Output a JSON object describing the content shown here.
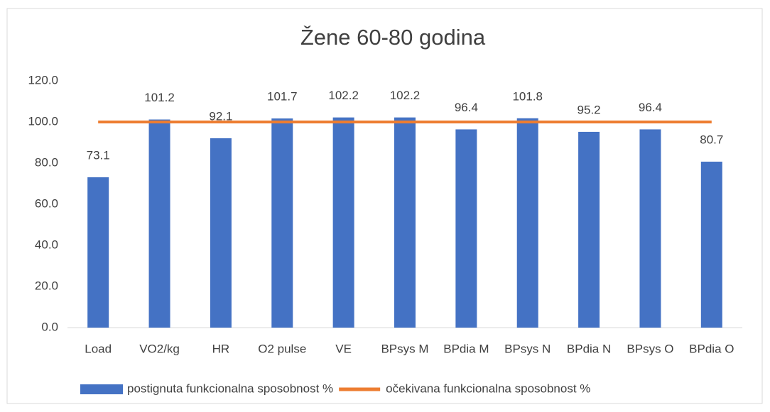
{
  "chart_data": {
    "type": "bar",
    "title": "Žene 60-80 godina",
    "categories": [
      "Load",
      "VO2/kg",
      "HR",
      "O2 pulse",
      "VE",
      "BPsys M",
      "BPdia M",
      "BPsys N",
      "BPdia N",
      "BPsys O",
      "BPdia O"
    ],
    "series": [
      {
        "name": "postignuta funkcionalna sposobnost %",
        "color": "#4472c4",
        "type": "bar",
        "values": [
          73.1,
          101.2,
          92.1,
          101.7,
          102.2,
          102.2,
          96.4,
          101.8,
          95.2,
          96.4,
          80.7
        ]
      },
      {
        "name": "očekivana funkcionalna sposobnost %",
        "color": "#ed7d31",
        "type": "line",
        "values": [
          100,
          100,
          100,
          100,
          100,
          100,
          100,
          100,
          100,
          100,
          100
        ]
      }
    ],
    "ylim": [
      0,
      120
    ],
    "yticks": [
      {
        "value": 0,
        "label": "0.0"
      },
      {
        "value": 20,
        "label": "20.0"
      },
      {
        "value": 40,
        "label": "40.0"
      },
      {
        "value": 60,
        "label": "60.0"
      },
      {
        "value": 80,
        "label": "80.0"
      },
      {
        "value": 100,
        "label": "100.0"
      },
      {
        "value": 120,
        "label": "120.0"
      }
    ],
    "legend": "bottom"
  }
}
